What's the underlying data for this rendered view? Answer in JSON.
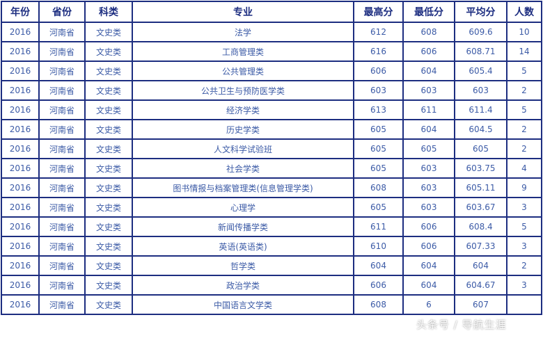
{
  "headers": [
    "年份",
    "省份",
    "科类",
    "专业",
    "最高分",
    "最低分",
    "平均分",
    "人数"
  ],
  "rows": [
    [
      "2016",
      "河南省",
      "文史类",
      "法学",
      "612",
      "608",
      "609.6",
      "10"
    ],
    [
      "2016",
      "河南省",
      "文史类",
      "工商管理类",
      "616",
      "606",
      "608.71",
      "14"
    ],
    [
      "2016",
      "河南省",
      "文史类",
      "公共管理类",
      "606",
      "604",
      "605.4",
      "5"
    ],
    [
      "2016",
      "河南省",
      "文史类",
      "公共卫生与预防医学类",
      "603",
      "603",
      "603",
      "2"
    ],
    [
      "2016",
      "河南省",
      "文史类",
      "经济学类",
      "613",
      "611",
      "611.4",
      "5"
    ],
    [
      "2016",
      "河南省",
      "文史类",
      "历史学类",
      "605",
      "604",
      "604.5",
      "2"
    ],
    [
      "2016",
      "河南省",
      "文史类",
      "人文科学试验班",
      "605",
      "605",
      "605",
      "2"
    ],
    [
      "2016",
      "河南省",
      "文史类",
      "社会学类",
      "605",
      "603",
      "603.75",
      "4"
    ],
    [
      "2016",
      "河南省",
      "文史类",
      "图书情报与档案管理类(信息管理学类)",
      "608",
      "603",
      "605.11",
      "9"
    ],
    [
      "2016",
      "河南省",
      "文史类",
      "心理学",
      "605",
      "603",
      "603.67",
      "3"
    ],
    [
      "2016",
      "河南省",
      "文史类",
      "新闻传播学类",
      "611",
      "606",
      "608.4",
      "5"
    ],
    [
      "2016",
      "河南省",
      "文史类",
      "英语(英语类)",
      "610",
      "606",
      "607.33",
      "3"
    ],
    [
      "2016",
      "河南省",
      "文史类",
      "哲学类",
      "604",
      "604",
      "604",
      "2"
    ],
    [
      "2016",
      "河南省",
      "文史类",
      "政治学类",
      "606",
      "604",
      "604.67",
      "3"
    ],
    [
      "2016",
      "河南省",
      "文史类",
      "中国语言文学类",
      "608",
      "6",
      "607",
      ""
    ]
  ],
  "watermark": "头条号 / 导航生涯"
}
